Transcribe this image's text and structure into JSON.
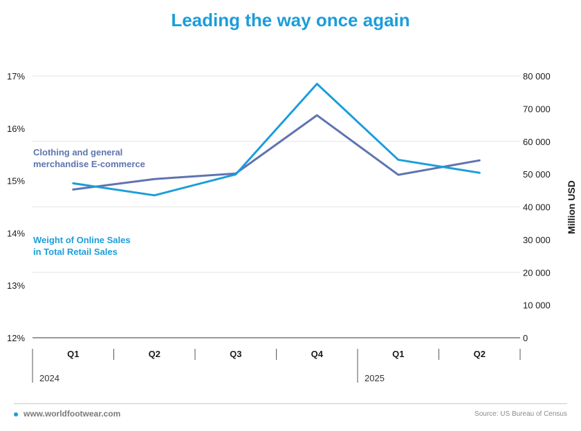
{
  "title": "Leading the way once again",
  "footer": {
    "website": "www.worldfootwear.com",
    "source": "Source: US Bureau of Census"
  },
  "colors": {
    "title": "#1b9ddb",
    "ecommerce": "#5f73b0",
    "weight": "#1b9ddb",
    "grid": "#e3e3e3",
    "axis": "#333333"
  },
  "chart_data": {
    "type": "line",
    "categories": [
      "Q1",
      "Q2",
      "Q3",
      "Q4",
      "Q1",
      "Q2"
    ],
    "years": [
      {
        "label": "2024",
        "quarters": [
          "Q1",
          "Q2",
          "Q3",
          "Q4"
        ]
      },
      {
        "label": "2025",
        "quarters": [
          "Q1",
          "Q2"
        ]
      }
    ],
    "left_axis": {
      "ticks": [
        "17%",
        "16%",
        "15%",
        "14%",
        "13%",
        "12%"
      ],
      "tick_values": [
        17,
        16,
        15,
        14,
        13,
        12
      ],
      "range": [
        12,
        17
      ],
      "label": ""
    },
    "right_axis": {
      "ticks": [
        "80 000",
        "70 000",
        "60 000",
        "50 000",
        "40 000",
        "30 000",
        "20 000",
        "10 000",
        "0"
      ],
      "tick_values": [
        80000,
        70000,
        60000,
        50000,
        40000,
        30000,
        20000,
        10000,
        0
      ],
      "range": [
        0,
        80000
      ],
      "label": "Million USD"
    },
    "series": [
      {
        "name": "Clothing and general merchandise E-commerce",
        "label_lines": [
          "Clothing and general",
          "merchandise E-commerce"
        ],
        "axis": "right",
        "color": "#5f73b0",
        "values": [
          45300,
          48500,
          50200,
          68000,
          49800,
          54200
        ]
      },
      {
        "name": "Weight of Online Sales in Total Retail Sales",
        "label_lines": [
          "Weight of Online Sales",
          "in Total Retail Sales"
        ],
        "axis": "left",
        "color": "#1b9ddb",
        "values": [
          14.95,
          14.72,
          15.12,
          16.85,
          15.4,
          15.15
        ]
      }
    ],
    "grid": true
  }
}
